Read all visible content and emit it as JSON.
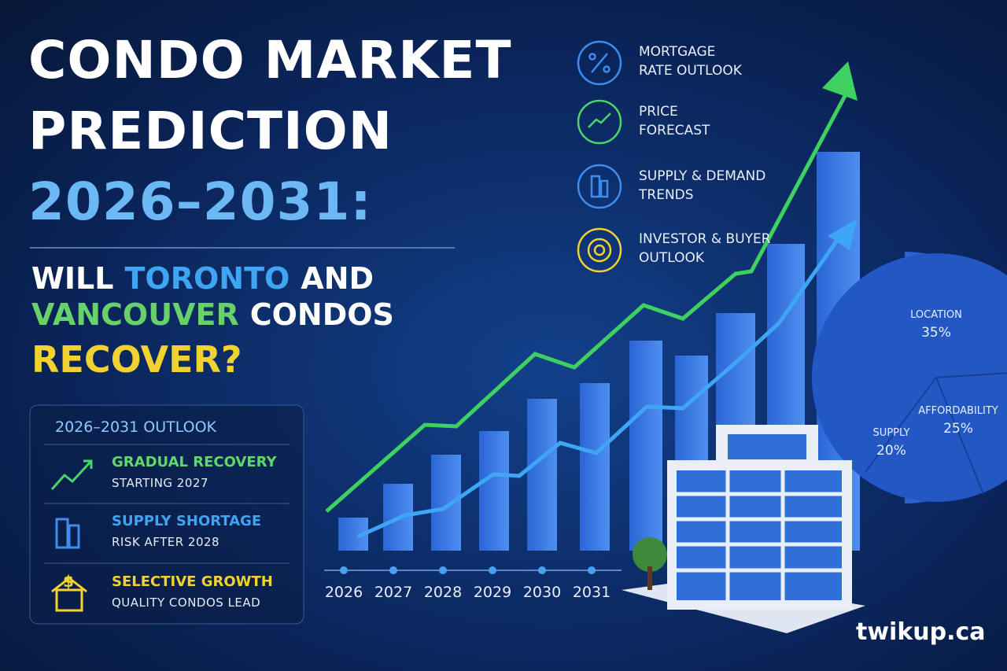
{
  "title": {
    "line1": "CONDO MARKET",
    "line2": "PREDICTION",
    "line3": "2026–2031:"
  },
  "question": {
    "part1": "WILL",
    "part2": "TORONTO",
    "part3": "AND",
    "part4": "VANCOUVER",
    "part5": "CONDOS",
    "part6": "RECOVER?"
  },
  "features": [
    {
      "line1": "MORTGAGE",
      "line2": "RATE OUTLOOK"
    },
    {
      "line1": "PRICE",
      "line2": "FORECAST"
    },
    {
      "line1": "SUPPLY & DEMAND",
      "line2": "TRENDS"
    },
    {
      "line1": "INVESTOR & BUYER",
      "line2": "OUTLOOK"
    }
  ],
  "outlook": {
    "title": "2026–2031 OUTLOOK",
    "items": [
      {
        "title": "GRADUAL RECOVERY",
        "detail": "STARTING 2027"
      },
      {
        "title": "SUPPLY SHORTAGE",
        "detail": "RISK AFTER 2028"
      },
      {
        "title": "SELECTIVE GROWTH",
        "detail": "QUALITY CONDOS LEAD",
        "icon": "$"
      }
    ]
  },
  "years": [
    "2026",
    "2027",
    "2028",
    "2029",
    "2030",
    "2031"
  ],
  "pie": [
    {
      "label": "LOCATION",
      "value": "35%"
    },
    {
      "label": "AFFORDABILITY",
      "value": "25%"
    },
    {
      "label": "SUPPLY",
      "value": "20%"
    }
  ],
  "brand": "twikup.ca"
}
